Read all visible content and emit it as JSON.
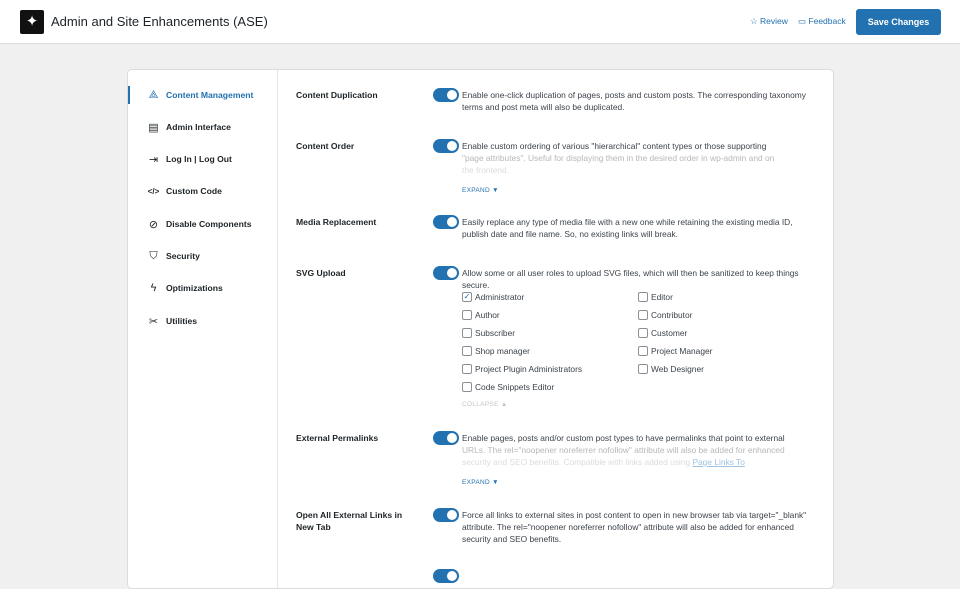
{
  "header": {
    "title": "Admin and Site Enhancements (ASE)",
    "review": "Review",
    "feedback": "Feedback",
    "save": "Save Changes",
    "accent": "#2271b1"
  },
  "sidebar": {
    "items": [
      {
        "label": "Content Management",
        "icon": "shapes-icon",
        "active": true
      },
      {
        "label": "Admin Interface",
        "icon": "layout-icon"
      },
      {
        "label": "Log In | Log Out",
        "icon": "login-icon"
      },
      {
        "label": "Custom Code",
        "icon": "code-icon"
      },
      {
        "label": "Disable Components",
        "icon": "ban-icon"
      },
      {
        "label": "Security",
        "icon": "shield-icon"
      },
      {
        "label": "Optimizations",
        "icon": "bolt-icon"
      },
      {
        "label": "Utilities",
        "icon": "tools-icon"
      }
    ]
  },
  "settings": [
    {
      "label": "Content Duplication",
      "enabled": true,
      "desc": "Enable one-click duplication of pages, posts and custom posts. The corresponding taxonomy terms and post meta will also be duplicated."
    },
    {
      "label": "Content Order",
      "enabled": true,
      "desc1": "Enable custom ordering of various \"hierarchical\" content types or those supporting",
      "desc2": "\"page attributes\". Useful for displaying them in the desired order in wp-admin and on",
      "desc3": "the frontend.",
      "toggle_text": "EXPAND ▼"
    },
    {
      "label": "Media Replacement",
      "enabled": true,
      "desc": "Easily replace any type of media file with a new one while retaining the existing media ID, publish date and file name. So, no existing links will break."
    },
    {
      "label": "SVG Upload",
      "enabled": true,
      "desc": "Allow some or all user roles to upload SVG files, which will then be sanitized to keep things secure.",
      "toggle_text": "COLLAPSE ▲",
      "roles": [
        {
          "label": "Administrator",
          "checked": true
        },
        {
          "label": "Editor",
          "checked": false
        },
        {
          "label": "Author",
          "checked": false
        },
        {
          "label": "Contributor",
          "checked": false
        },
        {
          "label": "Subscriber",
          "checked": false
        },
        {
          "label": "Customer",
          "checked": false
        },
        {
          "label": "Shop manager",
          "checked": false
        },
        {
          "label": "Project Manager",
          "checked": false
        },
        {
          "label": "Project Plugin Administrators",
          "checked": false
        },
        {
          "label": "Web Designer",
          "checked": false
        },
        {
          "label": "Code Snippets Editor",
          "checked": false
        }
      ]
    },
    {
      "label": "External Permalinks",
      "enabled": true,
      "desc1": "Enable pages, posts and/or custom post types to have permalinks that point to external",
      "desc2": "URLs. The rel=\"noopener noreferrer nofollow\" attribute will also be added for enhanced",
      "desc3": "security and SEO benefits. Compatible with links added using ",
      "link": "Page Links To",
      "toggle_text": "EXPAND ▼"
    },
    {
      "label": "Open All External Links in New Tab",
      "enabled": true,
      "desc": "Force all links to external sites in post content to open in new browser tab via target=\"_blank\" attribute. The rel=\"noopener noreferrer nofollow\" attribute will also be added for enhanced security and SEO benefits."
    },
    {
      "enabled": true
    }
  ]
}
